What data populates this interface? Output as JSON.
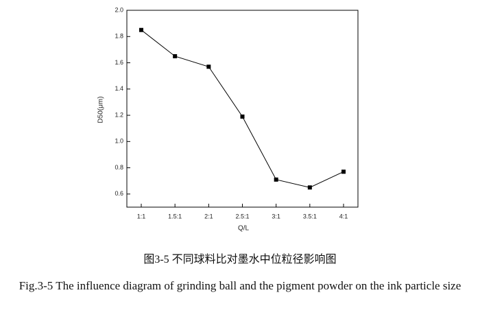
{
  "chart_data": {
    "type": "line",
    "categories": [
      "1:1",
      "1.5:1",
      "2:1",
      "2.5:1",
      "3:1",
      "3.5:1",
      "4:1"
    ],
    "values": [
      1.85,
      1.65,
      1.57,
      1.19,
      0.71,
      0.65,
      0.77
    ],
    "color": "#000000",
    "x_label": "Q/L",
    "y_label": "D50(μm)",
    "ylim": [
      0.5,
      2.0
    ],
    "yticks": [
      0.6,
      0.8,
      {
        "value": 1,
        "label": "1.0"
      },
      1.2,
      1.4,
      1.6,
      1.8,
      {
        "value": 2,
        "label": "2.0"
      }
    ],
    "grid": false,
    "caption_cn": "图3-5  不同球料比对墨水中位粒径影响图",
    "caption_en": "Fig.3-5 The influence diagram of grinding ball and the pigment powder on the ink particle size"
  }
}
